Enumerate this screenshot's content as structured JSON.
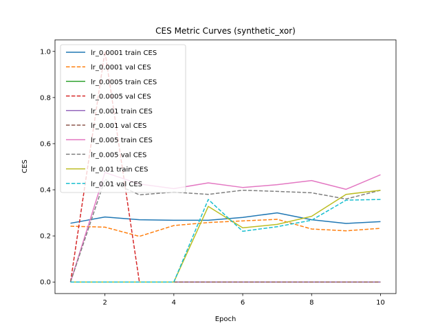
{
  "chart_data": {
    "type": "line",
    "title": "CES Metric Curves (synthetic_xor)",
    "xlabel": "Epoch",
    "ylabel": "CES",
    "xlim": [
      0.55,
      10.45
    ],
    "ylim": [
      -0.05,
      1.05
    ],
    "xticks": [
      2,
      4,
      6,
      8,
      10
    ],
    "yticks": [
      0.0,
      0.2,
      0.4,
      0.6,
      0.8,
      1.0
    ],
    "ytick_labels": [
      "0.0",
      "0.2",
      "0.4",
      "0.6",
      "0.8",
      "1.0"
    ],
    "grid": false,
    "legend_position": "upper-left",
    "x": [
      1,
      2,
      3,
      4,
      5,
      6,
      7,
      8,
      9,
      10
    ],
    "series": [
      {
        "name": "lr_0.0001 train CES",
        "color": "#1f77b4",
        "dashed": false,
        "values": [
          0.255,
          0.282,
          0.27,
          0.268,
          0.268,
          0.28,
          0.3,
          0.27,
          0.254,
          0.262
        ]
      },
      {
        "name": "lr_0.0001 val CES",
        "color": "#ff7f0e",
        "dashed": true,
        "values": [
          0.242,
          0.238,
          0.198,
          0.245,
          0.258,
          0.265,
          0.272,
          0.23,
          0.222,
          0.233
        ]
      },
      {
        "name": "lr_0.0005 train CES",
        "color": "#2ca02c",
        "dashed": false,
        "values": [
          0.0,
          0.0,
          0.0,
          0.0,
          0.0,
          0.0,
          0.0,
          0.0,
          0.0,
          0.0
        ]
      },
      {
        "name": "lr_0.0005 val CES",
        "color": "#d62728",
        "dashed": true,
        "values": [
          0.0,
          1.0,
          0.0,
          0.0,
          0.0,
          0.0,
          0.0,
          0.0,
          0.0,
          0.0
        ]
      },
      {
        "name": "lr_0.001 train CES",
        "color": "#9467bd",
        "dashed": false,
        "values": [
          0.0,
          0.0,
          0.0,
          0.0,
          0.0,
          0.0,
          0.0,
          0.0,
          0.0,
          0.0
        ]
      },
      {
        "name": "lr_0.001 val CES",
        "color": "#8c564b",
        "dashed": true,
        "values": [
          0.0,
          0.0,
          0.0,
          0.0,
          0.0,
          0.0,
          0.0,
          0.0,
          0.0,
          0.0
        ]
      },
      {
        "name": "lr_0.005 train CES",
        "color": "#e377c2",
        "dashed": false,
        "values": [
          0.0,
          0.475,
          0.425,
          0.405,
          0.43,
          0.41,
          0.422,
          0.44,
          0.402,
          0.465
        ]
      },
      {
        "name": "lr_0.005 val CES",
        "color": "#7f7f7f",
        "dashed": true,
        "values": [
          0.0,
          0.445,
          0.378,
          0.39,
          0.38,
          0.398,
          0.393,
          0.387,
          0.36,
          0.398
        ]
      },
      {
        "name": "lr_0.01 train CES",
        "color": "#bcbd22",
        "dashed": false,
        "values": [
          0.0,
          0.0,
          0.0,
          0.0,
          0.328,
          0.235,
          0.25,
          0.285,
          0.38,
          0.398
        ]
      },
      {
        "name": "lr_0.01 val CES",
        "color": "#17becf",
        "dashed": true,
        "values": [
          0.0,
          0.0,
          0.0,
          0.0,
          0.358,
          0.22,
          0.24,
          0.268,
          0.355,
          0.358
        ]
      }
    ]
  }
}
